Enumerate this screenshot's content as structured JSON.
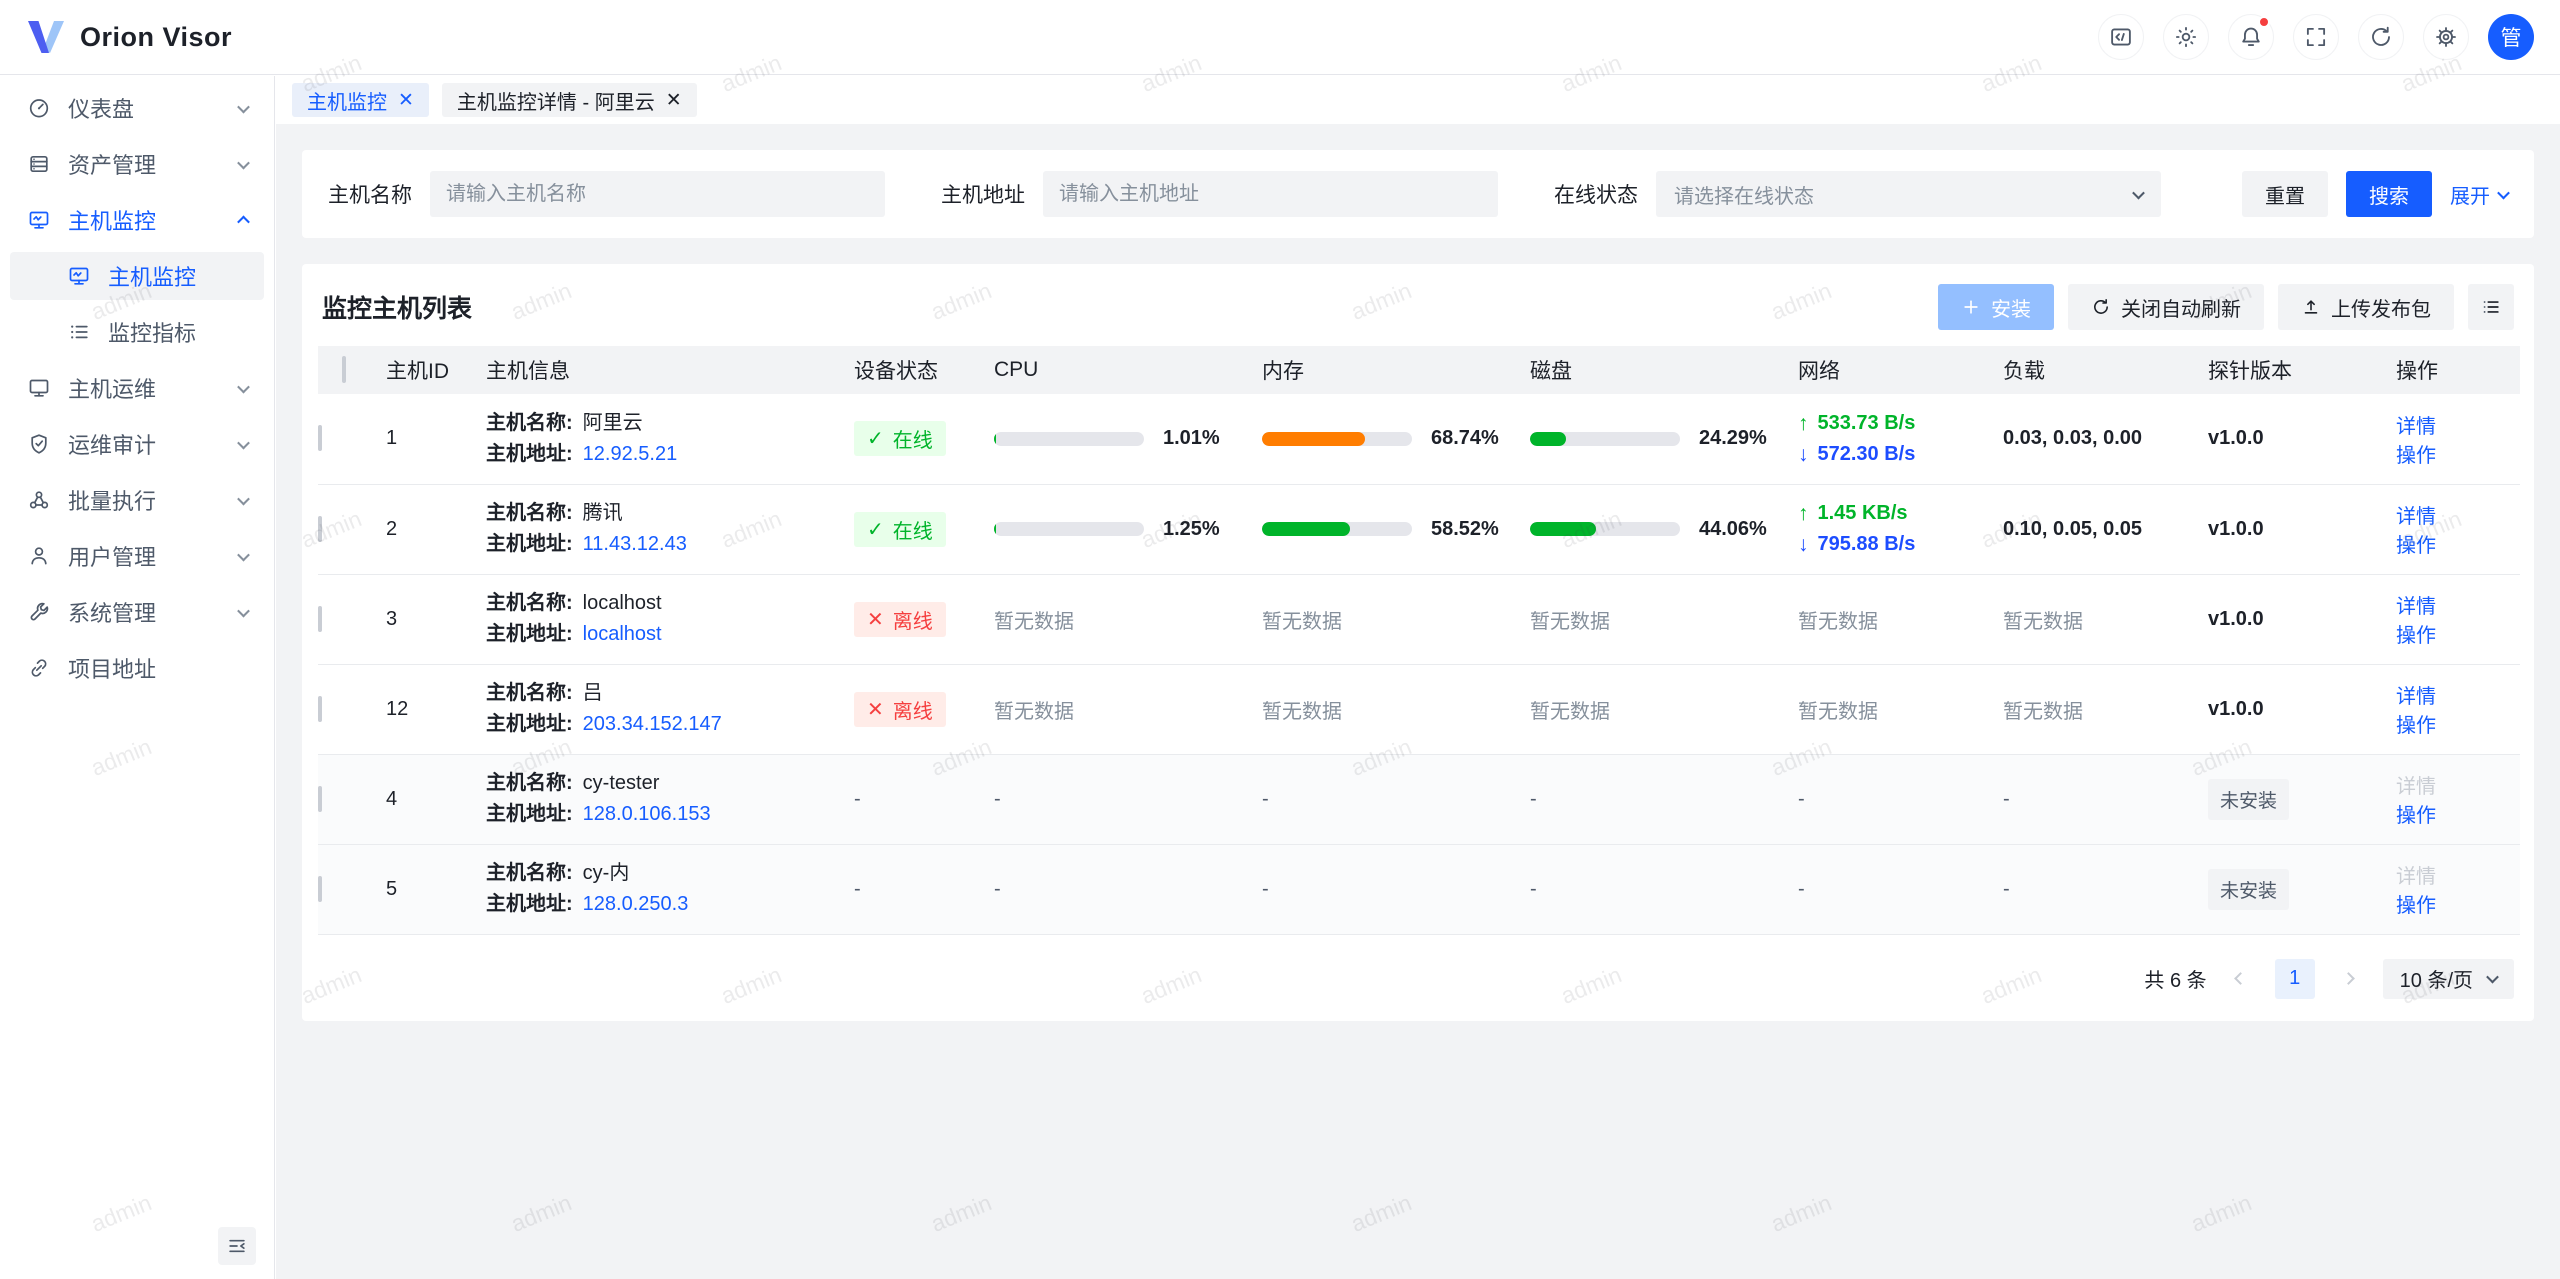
{
  "watermark": "admin",
  "colors": {
    "primary": "#165dff",
    "success": "#00b42a",
    "success_bg": "#e8ffea",
    "danger": "#f53f3f",
    "danger_bg": "#ffece8",
    "bar_orange": "#ff7d00",
    "install_disabled": "#94bfff",
    "page_bg": "#f2f3f5"
  },
  "header": {
    "logo_title": "Orion Visor",
    "avatar_text": "管"
  },
  "sidebar": {
    "items": [
      {
        "label": "仪表盘"
      },
      {
        "label": "资产管理"
      },
      {
        "label": "主机监控"
      },
      {
        "label": "主机监控"
      },
      {
        "label": "监控指标"
      },
      {
        "label": "主机运维"
      },
      {
        "label": "运维审计"
      },
      {
        "label": "批量执行"
      },
      {
        "label": "用户管理"
      },
      {
        "label": "系统管理"
      },
      {
        "label": "项目地址"
      }
    ]
  },
  "tabs": [
    {
      "label": "主机监控"
    },
    {
      "label": "主机监控详情 - 阿里云"
    }
  ],
  "filter": {
    "host_name": {
      "label": "主机名称",
      "placeholder": "请输入主机名称",
      "value": ""
    },
    "host_addr": {
      "label": "主机地址",
      "placeholder": "请输入主机地址",
      "value": ""
    },
    "online_status": {
      "label": "在线状态",
      "placeholder": "请选择在线状态",
      "value": ""
    },
    "reset_label": "重置",
    "search_label": "搜索",
    "expand_label": "展开"
  },
  "panel": {
    "title": "监控主机列表",
    "install_label": "安装",
    "auto_refresh_label": "关闭自动刷新",
    "upload_label": "上传发布包"
  },
  "table": {
    "columns": [
      "主机ID",
      "主机信息",
      "设备状态",
      "CPU",
      "内存",
      "磁盘",
      "网络",
      "负载",
      "探针版本",
      "操作"
    ],
    "field_name_label": "主机名称:",
    "field_addr_label": "主机地址:",
    "status_online": "在线",
    "status_offline": "离线",
    "no_data": "暂无数据",
    "empty": "-",
    "not_installed": "未安装",
    "action_detail": "详情",
    "action_menu": "操作",
    "rows": [
      {
        "id": "1",
        "name": "阿里云",
        "addr": "12.92.5.21",
        "status": "online",
        "cpu_text": "1.01%",
        "cpu_pct": 1.01,
        "mem_text": "68.74%",
        "mem_pct": 68.74,
        "disk_text": "24.29%",
        "disk_pct": 24.29,
        "net_up": "533.73 B/s",
        "net_down": "572.30 B/s",
        "load": "0.03, 0.03, 0.00",
        "version": "v1.0.0"
      },
      {
        "id": "2",
        "name": "腾讯",
        "addr": "11.43.12.43",
        "status": "online",
        "cpu_text": "1.25%",
        "cpu_pct": 1.25,
        "mem_text": "58.52%",
        "mem_pct": 58.52,
        "disk_text": "44.06%",
        "disk_pct": 44.06,
        "net_up": "1.45 KB/s",
        "net_down": "795.88 B/s",
        "load": "0.10, 0.05, 0.05",
        "version": "v1.0.0"
      },
      {
        "id": "3",
        "name": "localhost",
        "addr": "localhost",
        "status": "offline",
        "version": "v1.0.0"
      },
      {
        "id": "12",
        "name": "吕",
        "addr": "203.34.152.147",
        "status": "offline",
        "version": "v1.0.0"
      },
      {
        "id": "4",
        "name": "cy-tester",
        "addr": "128.0.106.153",
        "status": "none",
        "version": "未安装"
      },
      {
        "id": "5",
        "name": "cy-内",
        "addr": "128.0.250.3",
        "status": "none",
        "version": "未安装"
      }
    ]
  },
  "pagination": {
    "total": "共 6 条",
    "current_page": "1",
    "page_size": "10 条/页"
  }
}
